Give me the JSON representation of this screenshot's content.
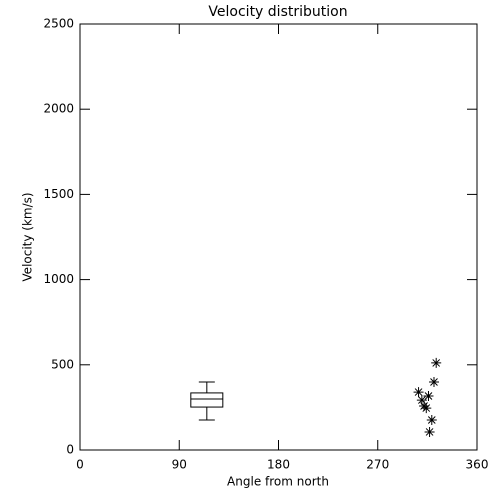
{
  "chart_data": {
    "type": "box+scatter",
    "title": "Velocity distribution",
    "x_label": "Angle from north",
    "y_label": "Velocity (km/s)",
    "xlim": [
      0,
      360
    ],
    "xticks": [
      0,
      90,
      180,
      270,
      360
    ],
    "ylim": [
      0,
      2500
    ],
    "yticks": [
      0,
      500,
      1000,
      1500,
      2000,
      2500
    ],
    "color": "#000000",
    "series": [
      {
        "type": "box",
        "x": 115,
        "whisker_low": 176,
        "q1": 252,
        "median": 299,
        "q3": 335,
        "whisker_high": 399
      },
      {
        "type": "scatter",
        "x": [
          323,
          321,
          307,
          316,
          310,
          312,
          314,
          319,
          317
        ],
        "values": [
          511,
          399,
          340,
          317,
          293,
          258,
          246,
          176,
          106
        ]
      }
    ]
  }
}
